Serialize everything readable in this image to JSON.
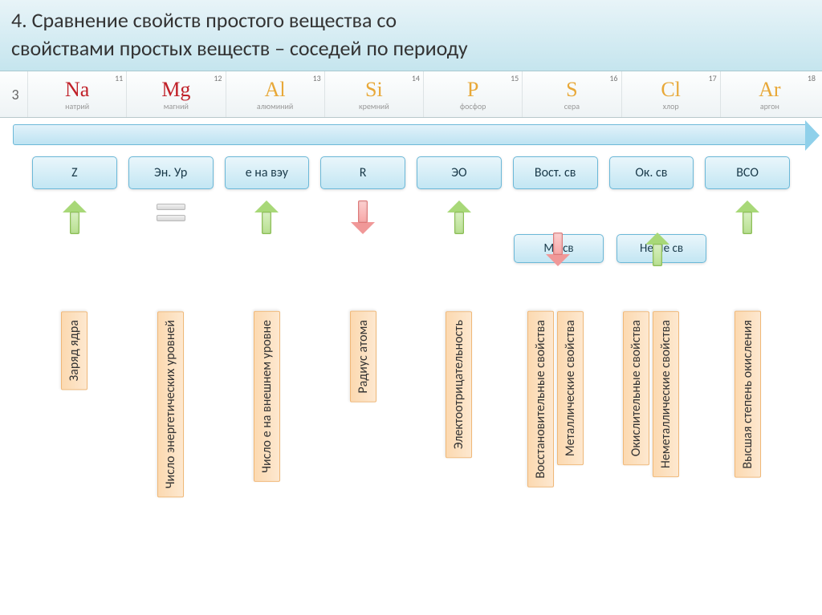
{
  "title": {
    "line1": "4. Сравнение свойств простого вещества со",
    "line2": "свойствами простых веществ – соседей по периоду"
  },
  "period": "3",
  "elements": [
    {
      "num": "11",
      "sym": "Na",
      "name": "натрий",
      "color": "#c02028"
    },
    {
      "num": "12",
      "sym": "Mg",
      "name": "магний",
      "color": "#c02028"
    },
    {
      "num": "13",
      "sym": "Al",
      "name": "алюминий",
      "color": "#e8a838"
    },
    {
      "num": "14",
      "sym": "Si",
      "name": "кремний",
      "color": "#e8a838"
    },
    {
      "num": "15",
      "sym": "P",
      "name": "фосфор",
      "color": "#e8a838"
    },
    {
      "num": "16",
      "sym": "S",
      "name": "сера",
      "color": "#e8a838"
    },
    {
      "num": "17",
      "sym": "Cl",
      "name": "хлор",
      "color": "#e8a838"
    },
    {
      "num": "18",
      "sym": "Ar",
      "name": "аргон",
      "color": "#e8a838"
    }
  ],
  "props": [
    {
      "label": "Z",
      "arrow": "up-green",
      "desc": [
        "Заряд ядра"
      ]
    },
    {
      "label": "Эн. Ур",
      "arrow": "equals",
      "desc": [
        "Число энергетических уровней"
      ]
    },
    {
      "label": "е на вэу",
      "arrow": "up-green",
      "desc": [
        "Число е на внешнем уровне"
      ]
    },
    {
      "label": "R",
      "arrow": "down-red",
      "desc": [
        "Радиус атома"
      ]
    },
    {
      "label": "ЭО",
      "arrow": "up-green",
      "desc": [
        "Электоотрицательность"
      ]
    },
    {
      "label": "Вост. св",
      "sub": {
        "box": "Ме св",
        "arrow": "down-red"
      },
      "desc": [
        "Восстановительные свойства",
        "Металлические свойства"
      ]
    },
    {
      "label": "Ок. св",
      "sub": {
        "box": "НеМе св",
        "arrow": "up-green"
      },
      "desc": [
        "Окислительные свойства",
        "Неметаллические свойства"
      ]
    },
    {
      "label": "ВСО",
      "arrow": "up-green",
      "desc": [
        "Высшая степень окисления"
      ]
    }
  ],
  "colors": {
    "title_bg_top": "#e8f4f8",
    "title_bg_bot": "#c5e5ee",
    "bluebox_top": "#eaf6fb",
    "bluebox_bot": "#c3e6f3",
    "bluebox_border": "#6bb8d8",
    "orange_top": "#fde8d0",
    "orange_bot": "#fcd9b0",
    "orange_border": "#f0b878",
    "green_arrow": "#a8d878",
    "red_arrow": "#f09898"
  }
}
